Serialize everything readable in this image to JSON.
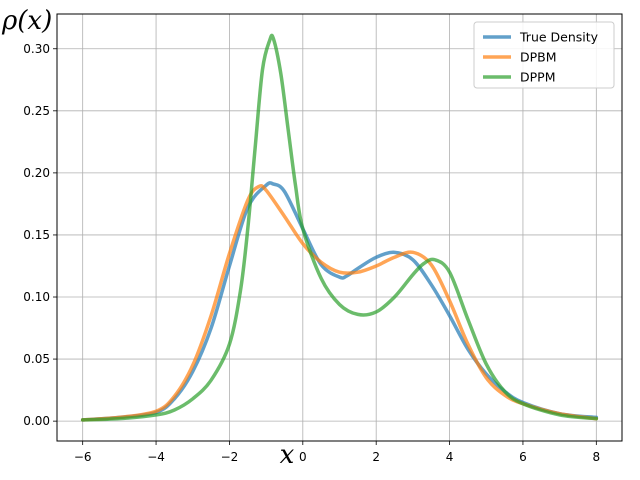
{
  "chart_data": {
    "type": "line",
    "title": "",
    "xlabel": "x",
    "ylabel": "ρ(x)",
    "xlim": [
      -6.7,
      8.7
    ],
    "ylim": [
      -0.016,
      0.328
    ],
    "xticks": [
      -6,
      -4,
      -2,
      0,
      2,
      4,
      6,
      8
    ],
    "yticks": [
      0.0,
      0.05,
      0.1,
      0.15,
      0.2,
      0.25,
      0.3
    ],
    "xtick_labels": [
      "−6",
      "−4",
      "−2",
      "0",
      "2",
      "4",
      "6",
      "8"
    ],
    "ytick_labels": [
      "0.00",
      "0.05",
      "0.10",
      "0.15",
      "0.20",
      "0.25",
      "0.30"
    ],
    "grid": true,
    "legend_position": "top-right",
    "series": [
      {
        "name": "True Density",
        "color": "#1f77b4",
        "x": [
          -6,
          -5,
          -4,
          -3.5,
          -3,
          -2.5,
          -2,
          -1.5,
          -1,
          -0.8,
          -0.5,
          0,
          0.5,
          1,
          1.2,
          1.5,
          2,
          2.5,
          3,
          3.5,
          4,
          4.5,
          5,
          5.5,
          6,
          7,
          8
        ],
        "y": [
          0.001,
          0.003,
          0.007,
          0.018,
          0.04,
          0.075,
          0.125,
          0.172,
          0.19,
          0.191,
          0.185,
          0.155,
          0.126,
          0.116,
          0.117,
          0.123,
          0.132,
          0.136,
          0.13,
          0.11,
          0.085,
          0.058,
          0.038,
          0.024,
          0.015,
          0.006,
          0.003
        ]
      },
      {
        "name": "DPBM",
        "color": "#ff7f0e",
        "x": [
          -6,
          -5,
          -4,
          -3.5,
          -3,
          -2.5,
          -2,
          -1.5,
          -1.2,
          -1,
          -0.5,
          0,
          0.5,
          1,
          1.5,
          2,
          2.5,
          3,
          3.5,
          4,
          4.5,
          5,
          5.5,
          6,
          7,
          8
        ],
        "y": [
          0.001,
          0.003,
          0.008,
          0.02,
          0.045,
          0.085,
          0.135,
          0.178,
          0.189,
          0.186,
          0.165,
          0.143,
          0.128,
          0.12,
          0.12,
          0.125,
          0.132,
          0.136,
          0.126,
          0.097,
          0.062,
          0.035,
          0.021,
          0.014,
          0.006,
          0.002
        ]
      },
      {
        "name": "DPPM",
        "color": "#2ca02c",
        "x": [
          -6,
          -5,
          -4,
          -3.5,
          -3,
          -2.5,
          -2,
          -1.7,
          -1.5,
          -1.3,
          -1.1,
          -0.9,
          -0.8,
          -0.6,
          -0.4,
          -0.2,
          0,
          0.5,
          1,
          1.5,
          2,
          2.5,
          3,
          3.3,
          3.6,
          4,
          4.5,
          5,
          5.5,
          6,
          7,
          8
        ],
        "y": [
          0.001,
          0.002,
          0.005,
          0.009,
          0.018,
          0.033,
          0.062,
          0.105,
          0.155,
          0.22,
          0.283,
          0.307,
          0.308,
          0.28,
          0.235,
          0.19,
          0.155,
          0.115,
          0.094,
          0.086,
          0.088,
          0.1,
          0.118,
          0.127,
          0.13,
          0.12,
          0.082,
          0.046,
          0.024,
          0.014,
          0.005,
          0.002
        ]
      }
    ]
  }
}
